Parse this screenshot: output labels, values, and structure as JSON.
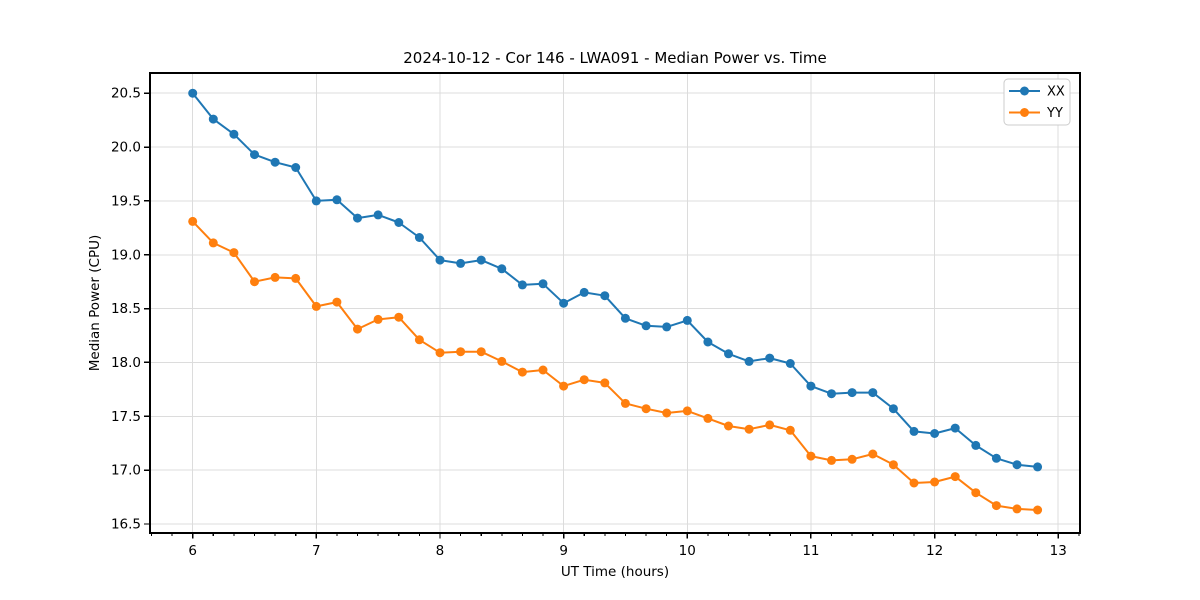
{
  "chart_data": {
    "type": "line",
    "title": "2024-10-12 - Cor 146 - LWA091 - Median Power vs. Time",
    "xlabel": "UT Time (hours)",
    "ylabel": "Median Power (CPU)",
    "grid": true,
    "legend_position": "upper right",
    "background": "#ffffff",
    "grid_color": "#dcdcdc",
    "spine_color": "#000000",
    "xlim": [
      5.655,
      13.176
    ],
    "ylim": [
      16.416,
      20.688
    ],
    "xticks": [
      6,
      7,
      8,
      9,
      10,
      11,
      12,
      13
    ],
    "x_minor_tick_step": 0.16667,
    "yticks": [
      16.5,
      17.0,
      17.5,
      18.0,
      18.5,
      19.0,
      19.5,
      20.0,
      20.5
    ],
    "x": [
      6.0,
      6.1667,
      6.3333,
      6.5,
      6.6667,
      6.8333,
      7.0,
      7.1667,
      7.3333,
      7.5,
      7.6667,
      7.8333,
      8.0,
      8.1667,
      8.3333,
      8.5,
      8.6667,
      8.8333,
      9.0,
      9.1667,
      9.3333,
      9.5,
      9.6667,
      9.8333,
      10.0,
      10.1667,
      10.3333,
      10.5,
      10.6667,
      10.8333,
      11.0,
      11.1667,
      11.3333,
      11.5,
      11.6667,
      11.8333,
      12.0,
      12.1667,
      12.3333,
      12.5,
      12.6667,
      12.8333
    ],
    "series": [
      {
        "name": "XX",
        "color": "#1f77b4",
        "values": [
          20.5,
          20.26,
          20.12,
          19.93,
          19.86,
          19.81,
          19.5,
          19.51,
          19.34,
          19.37,
          19.3,
          19.16,
          18.95,
          18.92,
          18.95,
          18.87,
          18.72,
          18.73,
          18.55,
          18.65,
          18.62,
          18.41,
          18.34,
          18.33,
          18.39,
          18.19,
          18.08,
          18.01,
          18.04,
          17.99,
          17.78,
          17.71,
          17.72,
          17.72,
          17.57,
          17.36,
          17.34,
          17.39,
          17.23,
          17.11,
          17.05,
          17.03
        ]
      },
      {
        "name": "YY",
        "color": "#ff7f0e",
        "values": [
          19.31,
          19.11,
          19.02,
          18.75,
          18.79,
          18.78,
          18.52,
          18.56,
          18.31,
          18.4,
          18.42,
          18.21,
          18.09,
          18.1,
          18.1,
          18.01,
          17.91,
          17.93,
          17.78,
          17.84,
          17.81,
          17.62,
          17.57,
          17.53,
          17.55,
          17.48,
          17.41,
          17.38,
          17.42,
          17.37,
          17.13,
          17.09,
          17.1,
          17.15,
          17.05,
          16.88,
          16.89,
          16.94,
          16.79,
          16.67,
          16.64,
          16.63
        ]
      }
    ]
  }
}
